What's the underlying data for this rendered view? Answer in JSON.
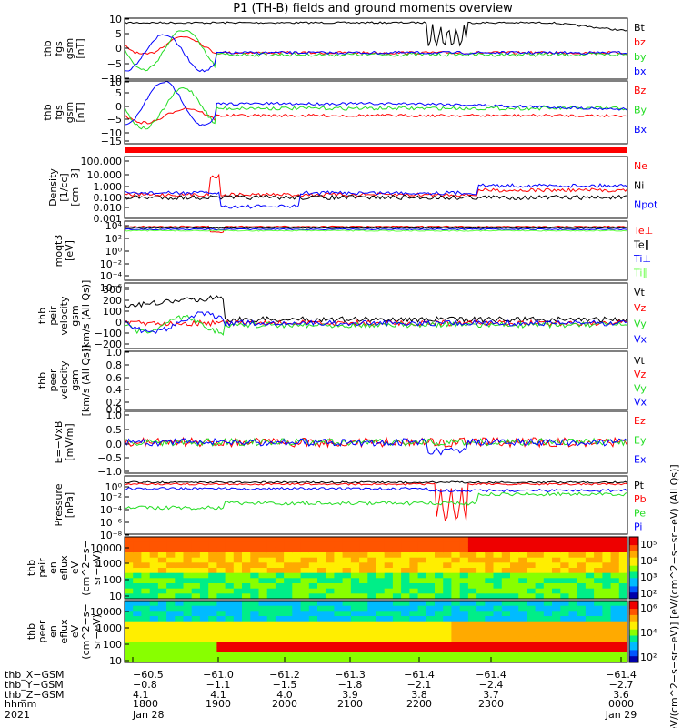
{
  "title": "P1 (TH-B) fields and ground moments overview",
  "colors": {
    "black": "#000000",
    "red": "#ff0000",
    "green": "#22dd22",
    "blue": "#0000ff",
    "lightgreen": "#66ff44"
  },
  "chart_data": [
    {
      "id": "p1",
      "type": "line",
      "ylabel": [
        "thb",
        "fgs",
        "gsm",
        "[nT]"
      ],
      "ylim": [
        -10,
        10
      ],
      "ticks": [
        "10",
        "5",
        "0",
        "−5",
        "−10"
      ],
      "series": [
        {
          "name": "Bt",
          "color": "black"
        },
        {
          "name": "bz",
          "color": "red"
        },
        {
          "name": "by",
          "color": "green"
        },
        {
          "name": "bx",
          "color": "blue"
        }
      ]
    },
    {
      "id": "p2",
      "type": "line",
      "ylabel": [
        "thb",
        "fgs",
        "gsm",
        "[nT]"
      ],
      "ylim": [
        -17,
        10
      ],
      "ticks": [
        "10",
        "5",
        "0",
        "−5",
        "−10",
        "−15"
      ],
      "series": [
        {
          "name": "Bz",
          "color": "red"
        },
        {
          "name": "By",
          "color": "green"
        },
        {
          "name": "Bx",
          "color": "blue"
        }
      ]
    },
    {
      "id": "p3",
      "type": "line",
      "ylabel": [
        "Density",
        "[1/cc]",
        "[cm−3]"
      ],
      "ylim": [
        "0.001",
        "100.000"
      ],
      "ticks": [
        "100.000",
        "10.000",
        "1.000",
        "0.100",
        "0.010",
        "0.001"
      ],
      "series": [
        {
          "name": "Ne",
          "color": "red"
        },
        {
          "name": "Ni",
          "color": "black"
        },
        {
          "name": "Npot",
          "color": "blue"
        }
      ]
    },
    {
      "id": "p4",
      "type": "line",
      "ylabel": [
        "moqt3",
        "[eV]"
      ],
      "ticks": [
        "10⁴",
        "10²",
        "10⁰",
        "10⁻²",
        "10⁻⁴",
        "10⁻⁶"
      ],
      "series": [
        {
          "name": "Te⊥",
          "color": "red"
        },
        {
          "name": "Te∥",
          "color": "black"
        },
        {
          "name": "Ti⊥",
          "color": "blue"
        },
        {
          "name": "Ti∥",
          "color": "lightgreen"
        }
      ]
    },
    {
      "id": "p5",
      "type": "line",
      "ylabel": [
        "thb",
        "peir",
        "velocity",
        "gsm",
        "[km/s (All Qs)]"
      ],
      "ylim": [
        -200,
        300
      ],
      "ticks": [
        "300",
        "200",
        "100",
        "0",
        "−100",
        "−200"
      ],
      "series": [
        {
          "name": "Vt",
          "color": "black"
        },
        {
          "name": "Vz",
          "color": "red"
        },
        {
          "name": "Vy",
          "color": "green"
        },
        {
          "name": "Vx",
          "color": "blue"
        }
      ]
    },
    {
      "id": "p6",
      "type": "line",
      "ylabel": [
        "thb",
        "peer",
        "velocity",
        "gsm",
        "[km/s (All Qs)]"
      ],
      "ylim": [
        0,
        1
      ],
      "ticks": [
        "1.0",
        "0.8",
        "0.6",
        "0.4",
        "0.2",
        "0.0"
      ],
      "series": [
        {
          "name": "Vt",
          "color": "black"
        },
        {
          "name": "Vz",
          "color": "red"
        },
        {
          "name": "Vy",
          "color": "green"
        },
        {
          "name": "Vx",
          "color": "blue"
        }
      ]
    },
    {
      "id": "p7",
      "type": "line",
      "ylabel": [
        "E=−VxB",
        "[mV/m]"
      ],
      "ylim": [
        -1,
        1
      ],
      "ticks": [
        "1.0",
        "0.5",
        "0.0",
        "−0.5",
        "−1.0"
      ],
      "series": [
        {
          "name": "Ez",
          "color": "red"
        },
        {
          "name": "Ey",
          "color": "green"
        },
        {
          "name": "Ex",
          "color": "blue"
        }
      ]
    },
    {
      "id": "p8",
      "type": "line",
      "ylabel": [
        "Pressure",
        "[nPa]"
      ],
      "ticks": [
        "10⁰",
        "10⁻²",
        "10⁻⁴",
        "10⁻⁶",
        "10⁻⁸"
      ],
      "series": [
        {
          "name": "Pt",
          "color": "black"
        },
        {
          "name": "Pb",
          "color": "red"
        },
        {
          "name": "Pe",
          "color": "green"
        },
        {
          "name": "Pi",
          "color": "blue"
        }
      ]
    },
    {
      "id": "p9",
      "type": "heatmap",
      "ylabel": [
        "thb",
        "peir",
        "en",
        "eflux",
        "eV",
        "(cm^2−s−",
        "sr−eV)"
      ],
      "ticks": [
        "10000",
        "1000",
        "100",
        "10"
      ],
      "colorbar": {
        "ticks": [
          "10⁵",
          "10⁴",
          "10³",
          "10²"
        ]
      }
    },
    {
      "id": "p10",
      "type": "heatmap",
      "ylabel": [
        "thb",
        "peer",
        "en",
        "eflux",
        "eV",
        "(cm^2−s−",
        "sr−eV)"
      ],
      "ticks": [
        "10000",
        "1000",
        "100",
        "10"
      ],
      "colorbar": {
        "ticks": [
          "10⁶",
          "10⁴",
          "10²"
        ]
      }
    }
  ],
  "colorbar_label": "[eV/(cm^2−s−sr−eV)] [eV/(cm^2−s−sr−eV) (All Qs)]",
  "xaxis": {
    "rows": [
      {
        "label": "thb_X−GSM",
        "values": [
          "−60.5",
          "−61.0",
          "−61.2",
          "−61.3",
          "−61.4",
          "−61.4",
          "−61.4"
        ]
      },
      {
        "label": "thb_Y−GSM",
        "values": [
          "−0.8",
          "−1.1",
          "−1.5",
          "−1.8",
          "−2.1",
          "−2.4",
          "−2.7"
        ]
      },
      {
        "label": "thb_Z−GSM",
        "values": [
          "4.1",
          "4.1",
          "4.0",
          "3.9",
          "3.8",
          "3.7",
          "3.6"
        ]
      },
      {
        "label": "hhmm",
        "values": [
          "1800",
          "1900",
          "2000",
          "2100",
          "2200",
          "2300",
          "0000"
        ]
      },
      {
        "label": "2021",
        "values": [
          "Jan 28",
          "",
          "",
          "",
          "",
          "",
          "Jan 29"
        ]
      }
    ]
  }
}
